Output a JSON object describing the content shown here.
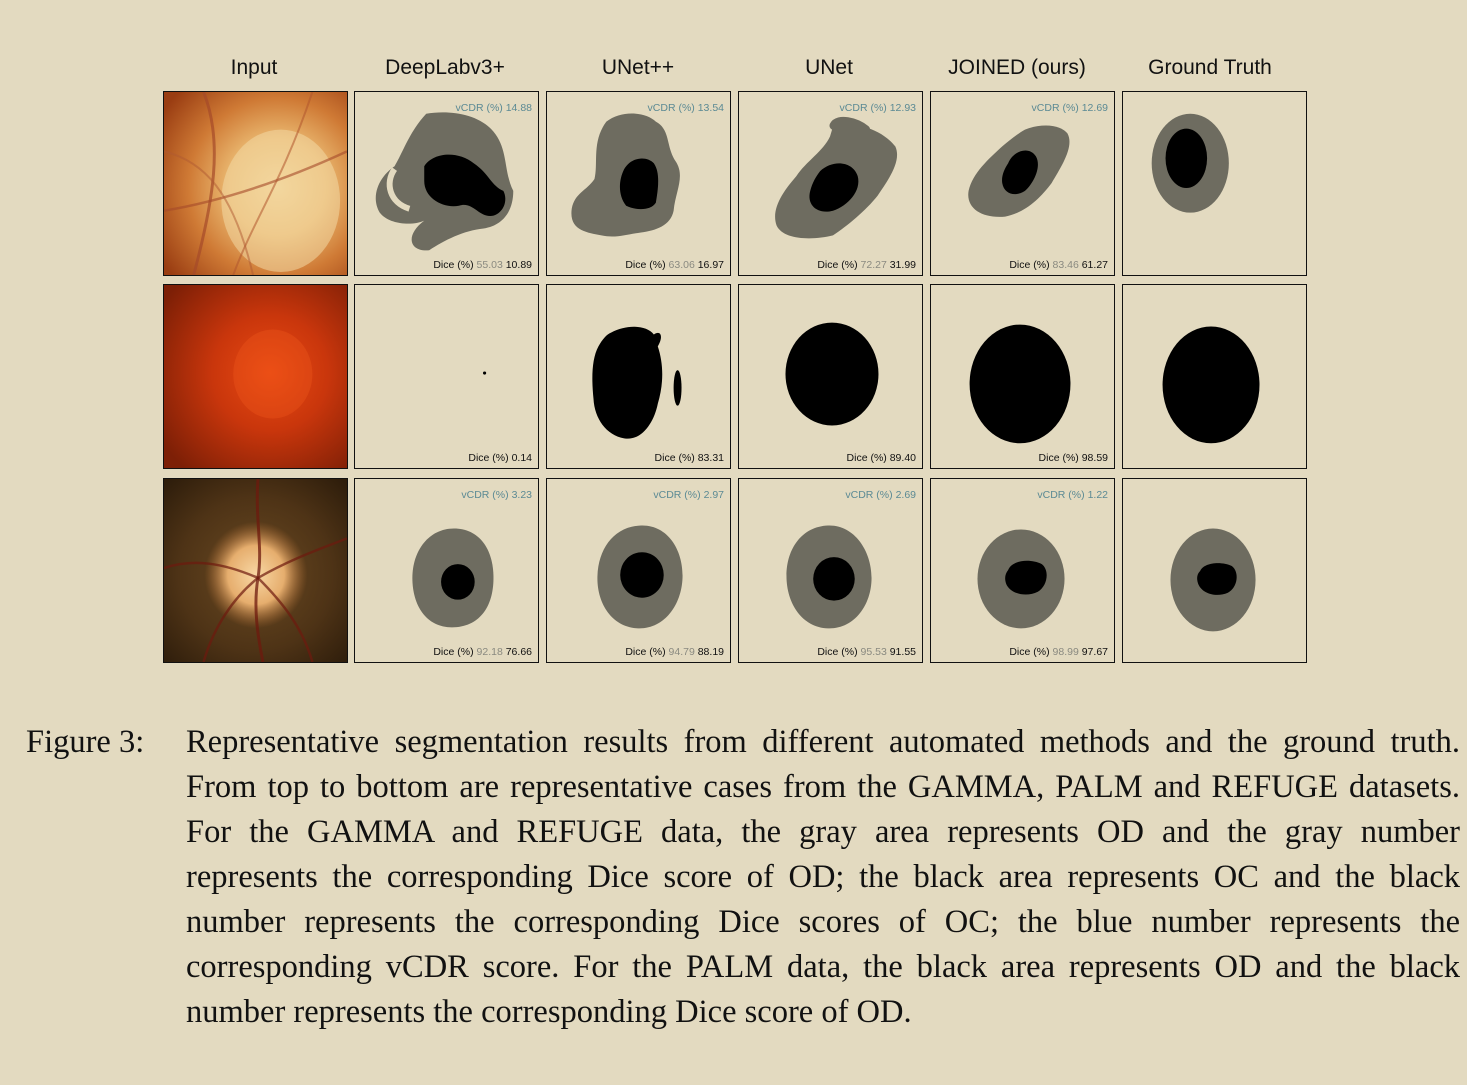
{
  "headers": [
    "Input",
    "DeepLabv3+",
    "UNet++",
    "UNet",
    "JOINED (ours)",
    "Ground Truth"
  ],
  "rows": [
    {
      "name": "GAMMA",
      "cells": [
        {
          "vcdr_label": "vCDR (%)",
          "vcdr": "14.88",
          "dice_label": "Dice (%)",
          "od": "55.03",
          "oc": "10.89"
        },
        {
          "vcdr_label": "vCDR (%)",
          "vcdr": "13.54",
          "dice_label": "Dice (%)",
          "od": "63.06",
          "oc": "16.97"
        },
        {
          "vcdr_label": "vCDR (%)",
          "vcdr": "12.93",
          "dice_label": "Dice (%)",
          "od": "72.27",
          "oc": "31.99"
        },
        {
          "vcdr_label": "vCDR (%)",
          "vcdr": "12.69",
          "dice_label": "Dice (%)",
          "od": "83.46",
          "oc": "61.27"
        }
      ]
    },
    {
      "name": "PALM",
      "cells": [
        {
          "dice_label": "Dice (%)",
          "oc": "0.14"
        },
        {
          "dice_label": "Dice (%)",
          "oc": "83.31"
        },
        {
          "dice_label": "Dice (%)",
          "oc": "89.40"
        },
        {
          "dice_label": "Dice (%)",
          "oc": "98.59"
        }
      ]
    },
    {
      "name": "REFUGE",
      "cells": [
        {
          "vcdr_label": "vCDR (%)",
          "vcdr": "3.23",
          "dice_label": "Dice (%)",
          "od": "92.18",
          "oc": "76.66"
        },
        {
          "vcdr_label": "vCDR (%)",
          "vcdr": "2.97",
          "dice_label": "Dice (%)",
          "od": "94.79",
          "oc": "88.19"
        },
        {
          "vcdr_label": "vCDR (%)",
          "vcdr": "2.69",
          "dice_label": "Dice (%)",
          "od": "95.53",
          "oc": "91.55"
        },
        {
          "vcdr_label": "vCDR (%)",
          "vcdr": "1.22",
          "dice_label": "Dice (%)",
          "od": "98.99",
          "oc": "97.67"
        }
      ]
    }
  ],
  "caption": {
    "label": "Figure 3:",
    "text": "Representative segmentation results from different automated methods and the ground truth. From top to bottom are representative cases from the GAMMA, PALM and REFUGE datasets. For the GAMMA and REFUGE data, the gray area represents OD and the gray number represents the corresponding Dice score of OD; the black area represents OC and the black number represents the corresponding Dice scores of OC; the blue number represents the corresponding vCDR score. For the PALM data, the black area represents OD and the black number represents the corresponding Dice score of OD."
  },
  "colors": {
    "od_gray": "#6e6c60",
    "oc_black": "#000000",
    "vcdr_blue": "#5b8a94",
    "background": "#e3dac0"
  }
}
